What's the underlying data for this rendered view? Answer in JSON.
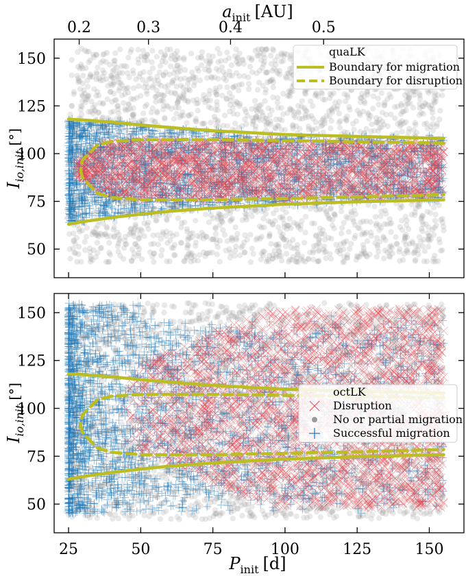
{
  "chart_data": [
    {
      "type": "scatter",
      "panel": "top",
      "xlabel": "",
      "ylabel": "I_io,init [°]",
      "ylabel_parts": {
        "main": "I",
        "sub": "io,init",
        "unit": "[°]"
      },
      "x_top_label_parts": {
        "main": "a",
        "sub": "init",
        "unit": "[AU]"
      },
      "xlim": [
        20,
        162
      ],
      "ylim": [
        35,
        160
      ],
      "x_ticks": [
        25,
        50,
        75,
        100,
        125,
        150
      ],
      "y_ticks": [
        50,
        75,
        100,
        125,
        150
      ],
      "y_tick_labels": [
        "50",
        "75",
        "100",
        "125",
        "150"
      ],
      "top_ticks": [
        0.2,
        0.3,
        0.4,
        0.5
      ],
      "top_tick_labels": [
        "0.2",
        "0.3",
        "0.4",
        "0.5"
      ],
      "grid": false,
      "legend": {
        "placement": "top-right",
        "title": "quaLK",
        "entries": [
          {
            "label": "Boundary for migration",
            "style": "solid"
          },
          {
            "label": "Boundary for disruption",
            "style": "dashed"
          }
        ]
      },
      "series": [
        {
          "name": "Boundary for migration",
          "style": "solid",
          "x": [
            25,
            30,
            40,
            50,
            60,
            75,
            100,
            125,
            155
          ],
          "upper": [
            118,
            117.6,
            116.5,
            115,
            113.7,
            112,
            110,
            109,
            108
          ],
          "lower": [
            63,
            64.4,
            66.5,
            68.3,
            69.8,
            71.5,
            73.5,
            74.8,
            75.8
          ]
        },
        {
          "name": "Boundary for disruption",
          "style": "dashed",
          "x": [
            30,
            35,
            40,
            50,
            75,
            100,
            125,
            155
          ],
          "upper": [
            97,
            104.5,
            106.4,
            107.3,
            107.3,
            106.8,
            106.2,
            105.5
          ],
          "lower": [
            87,
            79.3,
            77,
            75.8,
            75.8,
            76.5,
            77.3,
            78.5
          ]
        }
      ],
      "scatter_classes": {
        "no_migration": {
          "x_range": [
            25,
            155
          ],
          "y_range": [
            43,
            155
          ]
        },
        "successful_migration": {
          "x_range": [
            25,
            155
          ],
          "y_range": [
            62,
            121
          ]
        },
        "disruption": {
          "x_range": [
            28,
            155
          ],
          "y_range": [
            78,
            110
          ]
        }
      }
    },
    {
      "type": "scatter",
      "panel": "bottom",
      "xlabel": "P_init [d]",
      "xlabel_parts": {
        "main": "P",
        "sub": "init",
        "unit": "[d]"
      },
      "ylabel": "I_io,init [°]",
      "ylabel_parts": {
        "main": "I",
        "sub": "io,init",
        "unit": "[°]"
      },
      "xlim": [
        20,
        162
      ],
      "ylim": [
        35,
        160
      ],
      "x_ticks": [
        25,
        50,
        75,
        100,
        125,
        150
      ],
      "x_tick_labels": [
        "25",
        "50",
        "75",
        "100",
        "125",
        "150"
      ],
      "y_ticks": [
        50,
        75,
        100,
        125,
        150
      ],
      "y_tick_labels": [
        "50",
        "75",
        "100",
        "125",
        "150"
      ],
      "grid": false,
      "legend": {
        "placement": "center-right",
        "title": "octLK",
        "entries": [
          {
            "label": "Disruption",
            "marker": "x"
          },
          {
            "label": "No or partial migration",
            "marker": "o"
          },
          {
            "label": "Successful migration",
            "marker": "+"
          }
        ]
      },
      "series": [
        {
          "name": "Boundary for migration",
          "style": "solid",
          "x": [
            25,
            30,
            40,
            50,
            60,
            75,
            100,
            125,
            155
          ],
          "upper": [
            118,
            117.6,
            116.5,
            115,
            113.7,
            112,
            110,
            109,
            108
          ],
          "lower": [
            63,
            64.4,
            66.5,
            68.3,
            69.8,
            71.5,
            73.5,
            74.8,
            75.8
          ]
        },
        {
          "name": "Boundary for disruption",
          "style": "dashed",
          "x": [
            30,
            35,
            40,
            50,
            75,
            100,
            125,
            155
          ],
          "upper": [
            97,
            104.5,
            106.4,
            107.3,
            107.3,
            106.8,
            106.2,
            105.5
          ],
          "lower": [
            87,
            79.3,
            77,
            75.8,
            75.8,
            76.5,
            77.3,
            78.5
          ]
        }
      ],
      "scatter_classes": {
        "no_migration": {
          "x_range": [
            25,
            155
          ],
          "y_range": [
            42,
            155
          ]
        },
        "successful_migration": {
          "x_range": [
            25,
            155
          ],
          "y_range": [
            45,
            155
          ]
        },
        "disruption": {
          "x_range": [
            45,
            155
          ],
          "y_range": [
            45,
            150
          ]
        }
      }
    }
  ],
  "colors": {
    "no_migration": "#9a9a9a",
    "successful_migration": "#1f77b4",
    "disruption": "#e8454f",
    "boundary": "#bcbd22"
  }
}
